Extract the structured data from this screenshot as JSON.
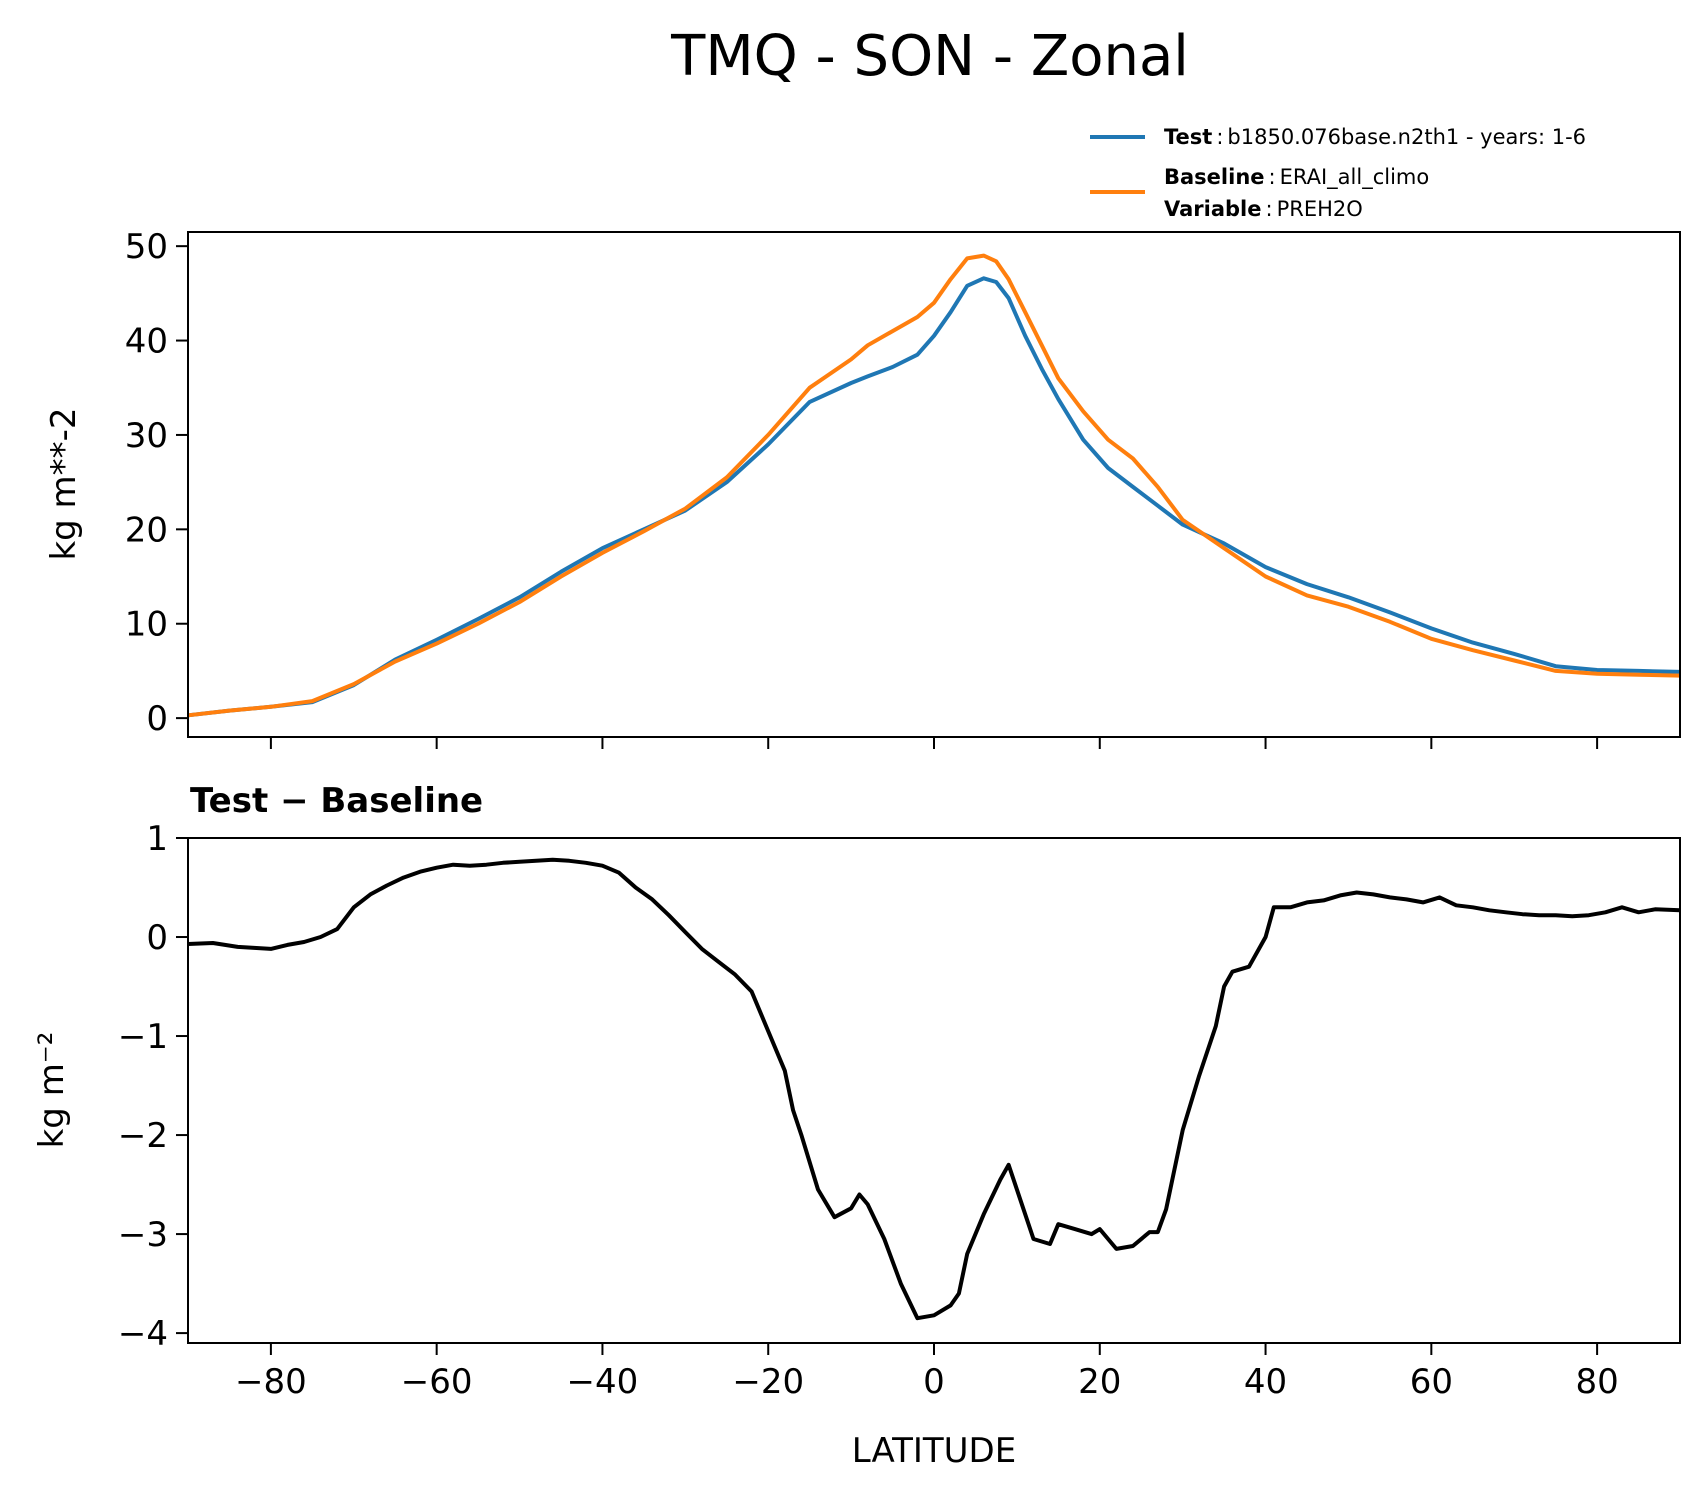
{
  "chart_data": [
    {
      "type": "line",
      "title": "TMQ - SON - Zonal",
      "xlabel": "",
      "ylabel": "kg m**-2",
      "xlim": [
        -90,
        90
      ],
      "ylim": [
        -2,
        51.5
      ],
      "xticks": [
        -80,
        -60,
        -40,
        -20,
        0,
        20,
        40,
        60,
        80
      ],
      "yticks": [
        0,
        10,
        20,
        30,
        40,
        50
      ],
      "ytick_labels": [
        "0",
        "10",
        "20",
        "30",
        "40",
        "50"
      ],
      "legend_position": "above top-right",
      "legend": [
        {
          "key": "Test",
          "sep": ":",
          "text": "b1850.076base.n2th1 - years: 1-6",
          "color": "#1f77b4"
        },
        {
          "key": "Baseline",
          "sep": ":",
          "text": "ERAI_all_climo",
          "key2": "Variable",
          "text2": "PREH2O",
          "color": "#ff7f0e"
        }
      ],
      "x": [
        -90,
        -85,
        -80,
        -75,
        -70,
        -65,
        -60,
        -55,
        -50,
        -45,
        -40,
        -35,
        -30,
        -25,
        -20,
        -15,
        -10,
        -8,
        -5,
        -2,
        0,
        2,
        4,
        6,
        7.5,
        9,
        11,
        13,
        15,
        18,
        21,
        24,
        27,
        30,
        35,
        40,
        45,
        50,
        55,
        60,
        65,
        70,
        75,
        80,
        85,
        90
      ],
      "series": [
        {
          "name": "Test",
          "color": "#1f77b4",
          "values": [
            0.3,
            0.8,
            1.2,
            1.7,
            3.5,
            6.2,
            8.3,
            10.5,
            12.8,
            15.5,
            18.0,
            20.0,
            22.0,
            25.0,
            29.0,
            33.5,
            35.5,
            36.2,
            37.2,
            38.5,
            40.5,
            43.0,
            45.8,
            46.6,
            46.2,
            44.5,
            40.5,
            37.0,
            33.8,
            29.5,
            26.5,
            24.5,
            22.5,
            20.5,
            18.5,
            16.0,
            14.2,
            12.8,
            11.2,
            9.5,
            8.0,
            6.8,
            5.5,
            5.1,
            5.0,
            4.9
          ]
        },
        {
          "name": "Baseline",
          "color": "#ff7f0e",
          "values": [
            0.3,
            0.8,
            1.2,
            1.8,
            3.6,
            6.0,
            7.9,
            10.0,
            12.3,
            15.0,
            17.5,
            19.8,
            22.2,
            25.5,
            30.0,
            35.0,
            38.0,
            39.5,
            41.0,
            42.5,
            44.0,
            46.5,
            48.7,
            49.0,
            48.4,
            46.5,
            43.0,
            39.5,
            36.0,
            32.5,
            29.5,
            27.5,
            24.5,
            21.0,
            18.0,
            15.0,
            13.0,
            11.8,
            10.2,
            8.4,
            7.2,
            6.1,
            5.0,
            4.7,
            4.6,
            4.5
          ]
        }
      ]
    },
    {
      "type": "line",
      "title": "Test − Baseline",
      "xlabel": "LATITUDE",
      "ylabel": "kg m⁻²",
      "xlim": [
        -90,
        90
      ],
      "ylim": [
        -4.1,
        1.0
      ],
      "xticks": [
        -80,
        -60,
        -40,
        -20,
        0,
        20,
        40,
        60,
        80
      ],
      "xtick_labels": [
        "−80",
        "−60",
        "−40",
        "−20",
        "0",
        "20",
        "40",
        "60",
        "80"
      ],
      "yticks": [
        1,
        0,
        -1,
        -2,
        -3,
        -4
      ],
      "ytick_labels": [
        "1",
        "0",
        "−1",
        "−2",
        "−3",
        "−4"
      ],
      "series": [
        {
          "name": "Test − Baseline",
          "color": "#000000",
          "x": [
            -90,
            -87,
            -84,
            -82,
            -80,
            -78,
            -76,
            -74,
            -72,
            -70,
            -68,
            -66,
            -64,
            -62,
            -60,
            -58,
            -56,
            -54,
            -52,
            -50,
            -48,
            -46,
            -44,
            -42,
            -40,
            -38,
            -36,
            -34,
            -32,
            -30,
            -28,
            -26,
            -24,
            -22,
            -20,
            -18,
            -17,
            -16,
            -14,
            -12,
            -10,
            -9,
            -8,
            -6,
            -4,
            -2,
            0,
            2,
            3,
            4,
            6,
            8,
            9,
            10,
            12,
            14,
            15,
            17,
            19,
            20,
            22,
            24,
            26,
            27,
            28,
            30,
            32,
            34,
            35,
            36,
            38,
            40,
            41,
            43,
            45,
            47,
            49,
            51,
            53,
            55,
            57,
            59,
            61,
            63,
            65,
            67,
            69,
            71,
            73,
            75,
            77,
            79,
            81,
            83,
            85,
            87,
            90
          ],
          "values": [
            -0.07,
            -0.06,
            -0.1,
            -0.11,
            -0.12,
            -0.08,
            -0.05,
            0.0,
            0.08,
            0.3,
            0.43,
            0.52,
            0.6,
            0.66,
            0.7,
            0.73,
            0.72,
            0.73,
            0.75,
            0.76,
            0.77,
            0.78,
            0.77,
            0.75,
            0.72,
            0.65,
            0.5,
            0.38,
            0.22,
            0.05,
            -0.12,
            -0.25,
            -0.38,
            -0.55,
            -0.95,
            -1.35,
            -1.75,
            -2.0,
            -2.55,
            -2.83,
            -2.74,
            -2.6,
            -2.7,
            -3.05,
            -3.5,
            -3.85,
            -3.82,
            -3.72,
            -3.6,
            -3.2,
            -2.8,
            -2.45,
            -2.3,
            -2.55,
            -3.05,
            -3.1,
            -2.9,
            -2.95,
            -3.0,
            -2.95,
            -3.15,
            -3.12,
            -2.98,
            -2.98,
            -2.75,
            -1.95,
            -1.4,
            -0.9,
            -0.5,
            -0.35,
            -0.3,
            0.0,
            0.3,
            0.3,
            0.35,
            0.37,
            0.42,
            0.45,
            0.43,
            0.4,
            0.38,
            0.35,
            0.4,
            0.32,
            0.3,
            0.27,
            0.25,
            0.23,
            0.22,
            0.22,
            0.21,
            0.22,
            0.25,
            0.3,
            0.25,
            0.28,
            0.27
          ]
        }
      ]
    }
  ]
}
